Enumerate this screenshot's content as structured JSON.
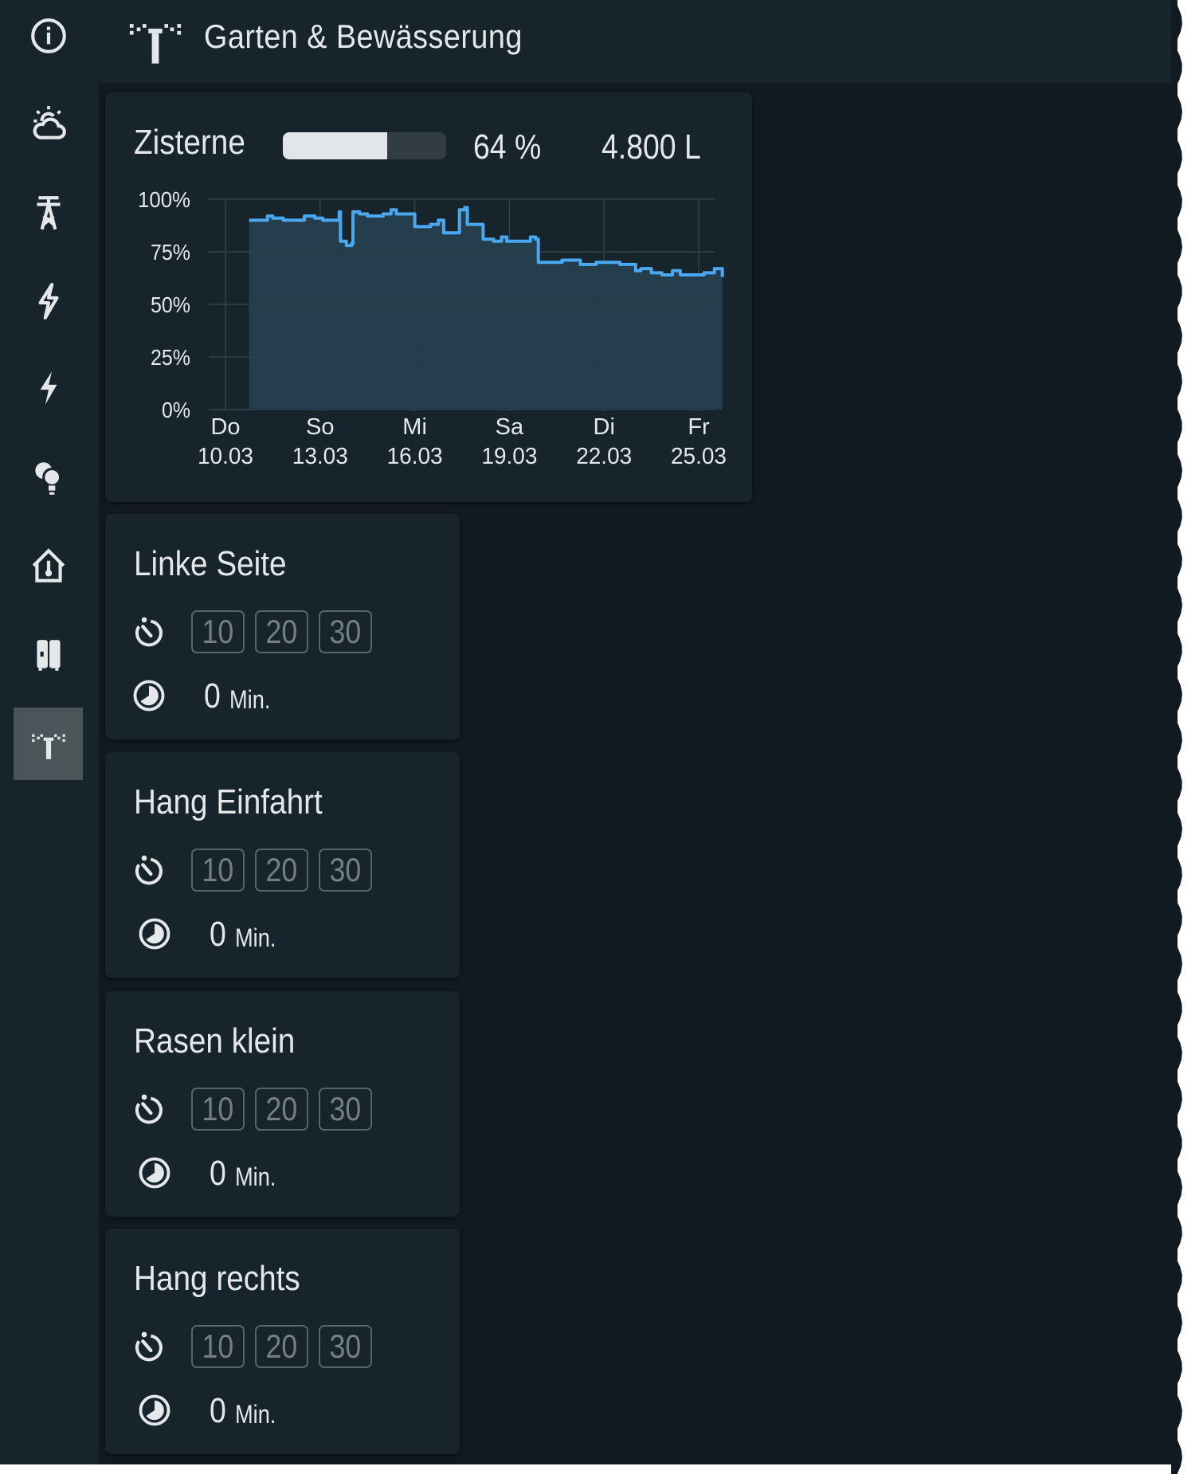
{
  "header": {
    "title": "Garten & Bewässerung",
    "icon": "sprinkler-icon"
  },
  "sidebar": {
    "items": [
      {
        "icon": "information-outline-icon",
        "active": false
      },
      {
        "icon": "weather-partly-cloudy-icon",
        "active": false
      },
      {
        "icon": "transmission-tower-icon",
        "active": false
      },
      {
        "icon": "flash-outline-icon",
        "active": false
      },
      {
        "icon": "flash-icon",
        "active": false
      },
      {
        "icon": "lightbulb-group-icon",
        "active": false
      },
      {
        "icon": "home-thermometer-outline-icon",
        "active": false
      },
      {
        "icon": "fridge-icon",
        "active": false
      },
      {
        "icon": "sprinkler-icon",
        "active": true
      }
    ]
  },
  "tank": {
    "label": "Zisterne",
    "level_percent": 64,
    "level_text": "64 %",
    "volume_text": "4.800 L"
  },
  "chart_data": {
    "type": "area",
    "line_color": "#4aa8f0",
    "fill_color": "#26404f",
    "grid": true,
    "y_ticks": [
      "0%",
      "25%",
      "50%",
      "75%",
      "100%"
    ],
    "ylim": [
      0,
      100
    ],
    "x_ticks": [
      {
        "day": "Do",
        "date": "10.03"
      },
      {
        "day": "So",
        "date": "13.03"
      },
      {
        "day": "Mi",
        "date": "16.03"
      },
      {
        "day": "Sa",
        "date": "19.03"
      },
      {
        "day": "Di",
        "date": "22.03"
      },
      {
        "day": "Fr",
        "date": "25.03"
      }
    ],
    "points": [
      [
        "10.03 18:00",
        90
      ],
      [
        "11.03 06:00",
        90
      ],
      [
        "11.03 08:00",
        92
      ],
      [
        "11.03 12:00",
        91
      ],
      [
        "11.03 20:00",
        90
      ],
      [
        "12.03 08:00",
        90
      ],
      [
        "12.03 12:00",
        92
      ],
      [
        "12.03 20:00",
        91
      ],
      [
        "13.03 02:00",
        90
      ],
      [
        "13.03 14:00",
        90
      ],
      [
        "13.03 14:30",
        94
      ],
      [
        "13.03 15:30",
        80
      ],
      [
        "13.03 20:00",
        78
      ],
      [
        "14.03 00:00",
        79
      ],
      [
        "14.03 01:00",
        94
      ],
      [
        "14.03 06:00",
        93
      ],
      [
        "14.03 12:00",
        92
      ],
      [
        "15.03 00:00",
        93
      ],
      [
        "15.03 06:00",
        95
      ],
      [
        "15.03 10:00",
        93
      ],
      [
        "15.03 22:00",
        93
      ],
      [
        "16.03 00:00",
        87
      ],
      [
        "16.03 12:00",
        88
      ],
      [
        "16.03 18:00",
        90
      ],
      [
        "16.03 22:00",
        84
      ],
      [
        "17.03 08:00",
        84
      ],
      [
        "17.03 10:00",
        95
      ],
      [
        "17.03 14:00",
        96
      ],
      [
        "17.03 16:00",
        88
      ],
      [
        "18.03 00:00",
        88
      ],
      [
        "18.03 04:00",
        81
      ],
      [
        "18.03 12:00",
        80
      ],
      [
        "18.03 18:00",
        82
      ],
      [
        "18.03 22:00",
        80
      ],
      [
        "19.03 12:00",
        80
      ],
      [
        "19.03 16:00",
        82
      ],
      [
        "19.03 20:00",
        81
      ],
      [
        "19.03 22:00",
        70
      ],
      [
        "20.03 12:00",
        70
      ],
      [
        "20.03 16:00",
        71
      ],
      [
        "21.03 06:00",
        69
      ],
      [
        "21.03 18:00",
        70
      ],
      [
        "22.03 06:00",
        70
      ],
      [
        "22.03 12:00",
        69
      ],
      [
        "22.03 20:00",
        69
      ],
      [
        "23.03 00:00",
        66
      ],
      [
        "23.03 04:00",
        67
      ],
      [
        "23.03 12:00",
        65
      ],
      [
        "23.03 20:00",
        64
      ],
      [
        "24.03 04:00",
        66
      ],
      [
        "24.03 10:00",
        64
      ],
      [
        "24.03 22:00",
        64
      ],
      [
        "25.03 04:00",
        65
      ],
      [
        "25.03 12:00",
        67
      ],
      [
        "25.03 18:00",
        63
      ]
    ]
  },
  "zones": [
    {
      "name": "Linke Seite",
      "buttons": [
        "10",
        "20",
        "30"
      ],
      "remaining": "0",
      "unit": "Min."
    },
    {
      "name": "Hang Einfahrt",
      "buttons": [
        "10",
        "20",
        "30"
      ],
      "remaining": "0",
      "unit": "Min."
    },
    {
      "name": "Rasen klein",
      "buttons": [
        "10",
        "20",
        "30"
      ],
      "remaining": "0",
      "unit": "Min."
    },
    {
      "name": "Hang rechts",
      "buttons": [
        "10",
        "20",
        "30"
      ],
      "remaining": "0",
      "unit": "Min."
    }
  ]
}
